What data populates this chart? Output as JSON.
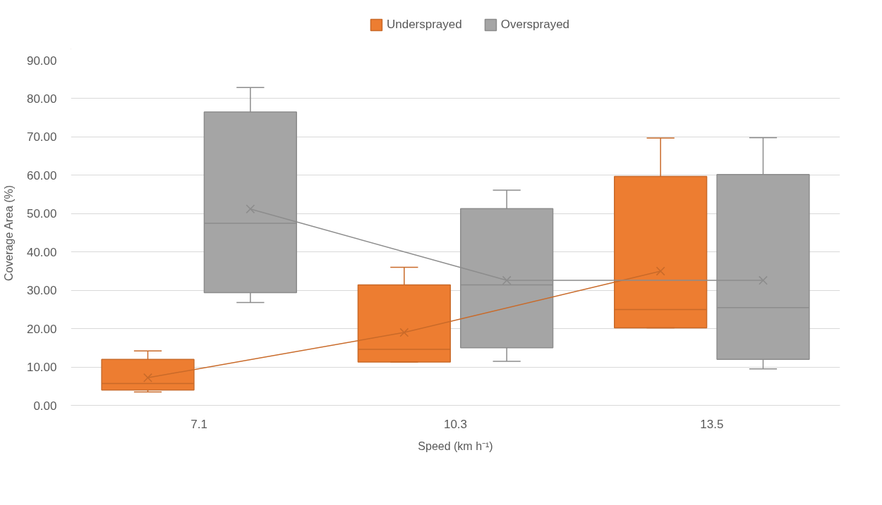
{
  "chart_data": {
    "type": "box",
    "xlabel": "Speed (km h⁻¹)",
    "ylabel": "Coverage Area (%)",
    "categories": [
      "7.1",
      "10.3",
      "13.5"
    ],
    "ylim": [
      0,
      90
    ],
    "yticks": [
      {
        "value": 0,
        "label": "0.00"
      },
      {
        "value": 10,
        "label": "10.00"
      },
      {
        "value": 20,
        "label": "20.00"
      },
      {
        "value": 30,
        "label": "30.00"
      },
      {
        "value": 40,
        "label": "40.00"
      },
      {
        "value": 50,
        "label": "50.00"
      },
      {
        "value": 60,
        "label": "60.00"
      },
      {
        "value": 70,
        "label": "70.00"
      },
      {
        "value": 80,
        "label": "80.00"
      },
      {
        "value": 90,
        "label": "90.00"
      }
    ],
    "grid": "y",
    "legend": "top",
    "series": [
      {
        "name": "Undersprayed",
        "color": "#ed7d31",
        "boxes": [
          {
            "low": 3.5,
            "q1": 4.0,
            "median": 5.7,
            "q3": 12.0,
            "high": 14.2
          },
          {
            "low": 11.3,
            "q1": 11.3,
            "median": 14.6,
            "q3": 31.4,
            "high": 36.0
          },
          {
            "low": 20.2,
            "q1": 20.2,
            "median": 25.0,
            "q3": 59.7,
            "high": 69.7
          }
        ]
      },
      {
        "name": "Oversprayed",
        "color": "#a5a5a5",
        "boxes": [
          {
            "low": 26.8,
            "q1": 29.4,
            "median": 47.5,
            "q3": 76.5,
            "high": 82.9
          },
          {
            "low": 11.5,
            "q1": 15.0,
            "median": 31.4,
            "q3": 51.3,
            "high": 56.1
          },
          {
            "low": 9.5,
            "q1": 12.0,
            "median": 25.5,
            "q3": 60.2,
            "high": 69.8
          }
        ]
      },
      {
        "type": "line",
        "color": "#c96a29",
        "marker": "cross",
        "line_style": "solid",
        "values": [
          7.2,
          19.0,
          35.0
        ]
      },
      {
        "type": "line",
        "color": "#8c8c8c",
        "marker": "cross",
        "line_style": "solid",
        "values": [
          51.2,
          32.6,
          32.6
        ]
      }
    ]
  }
}
